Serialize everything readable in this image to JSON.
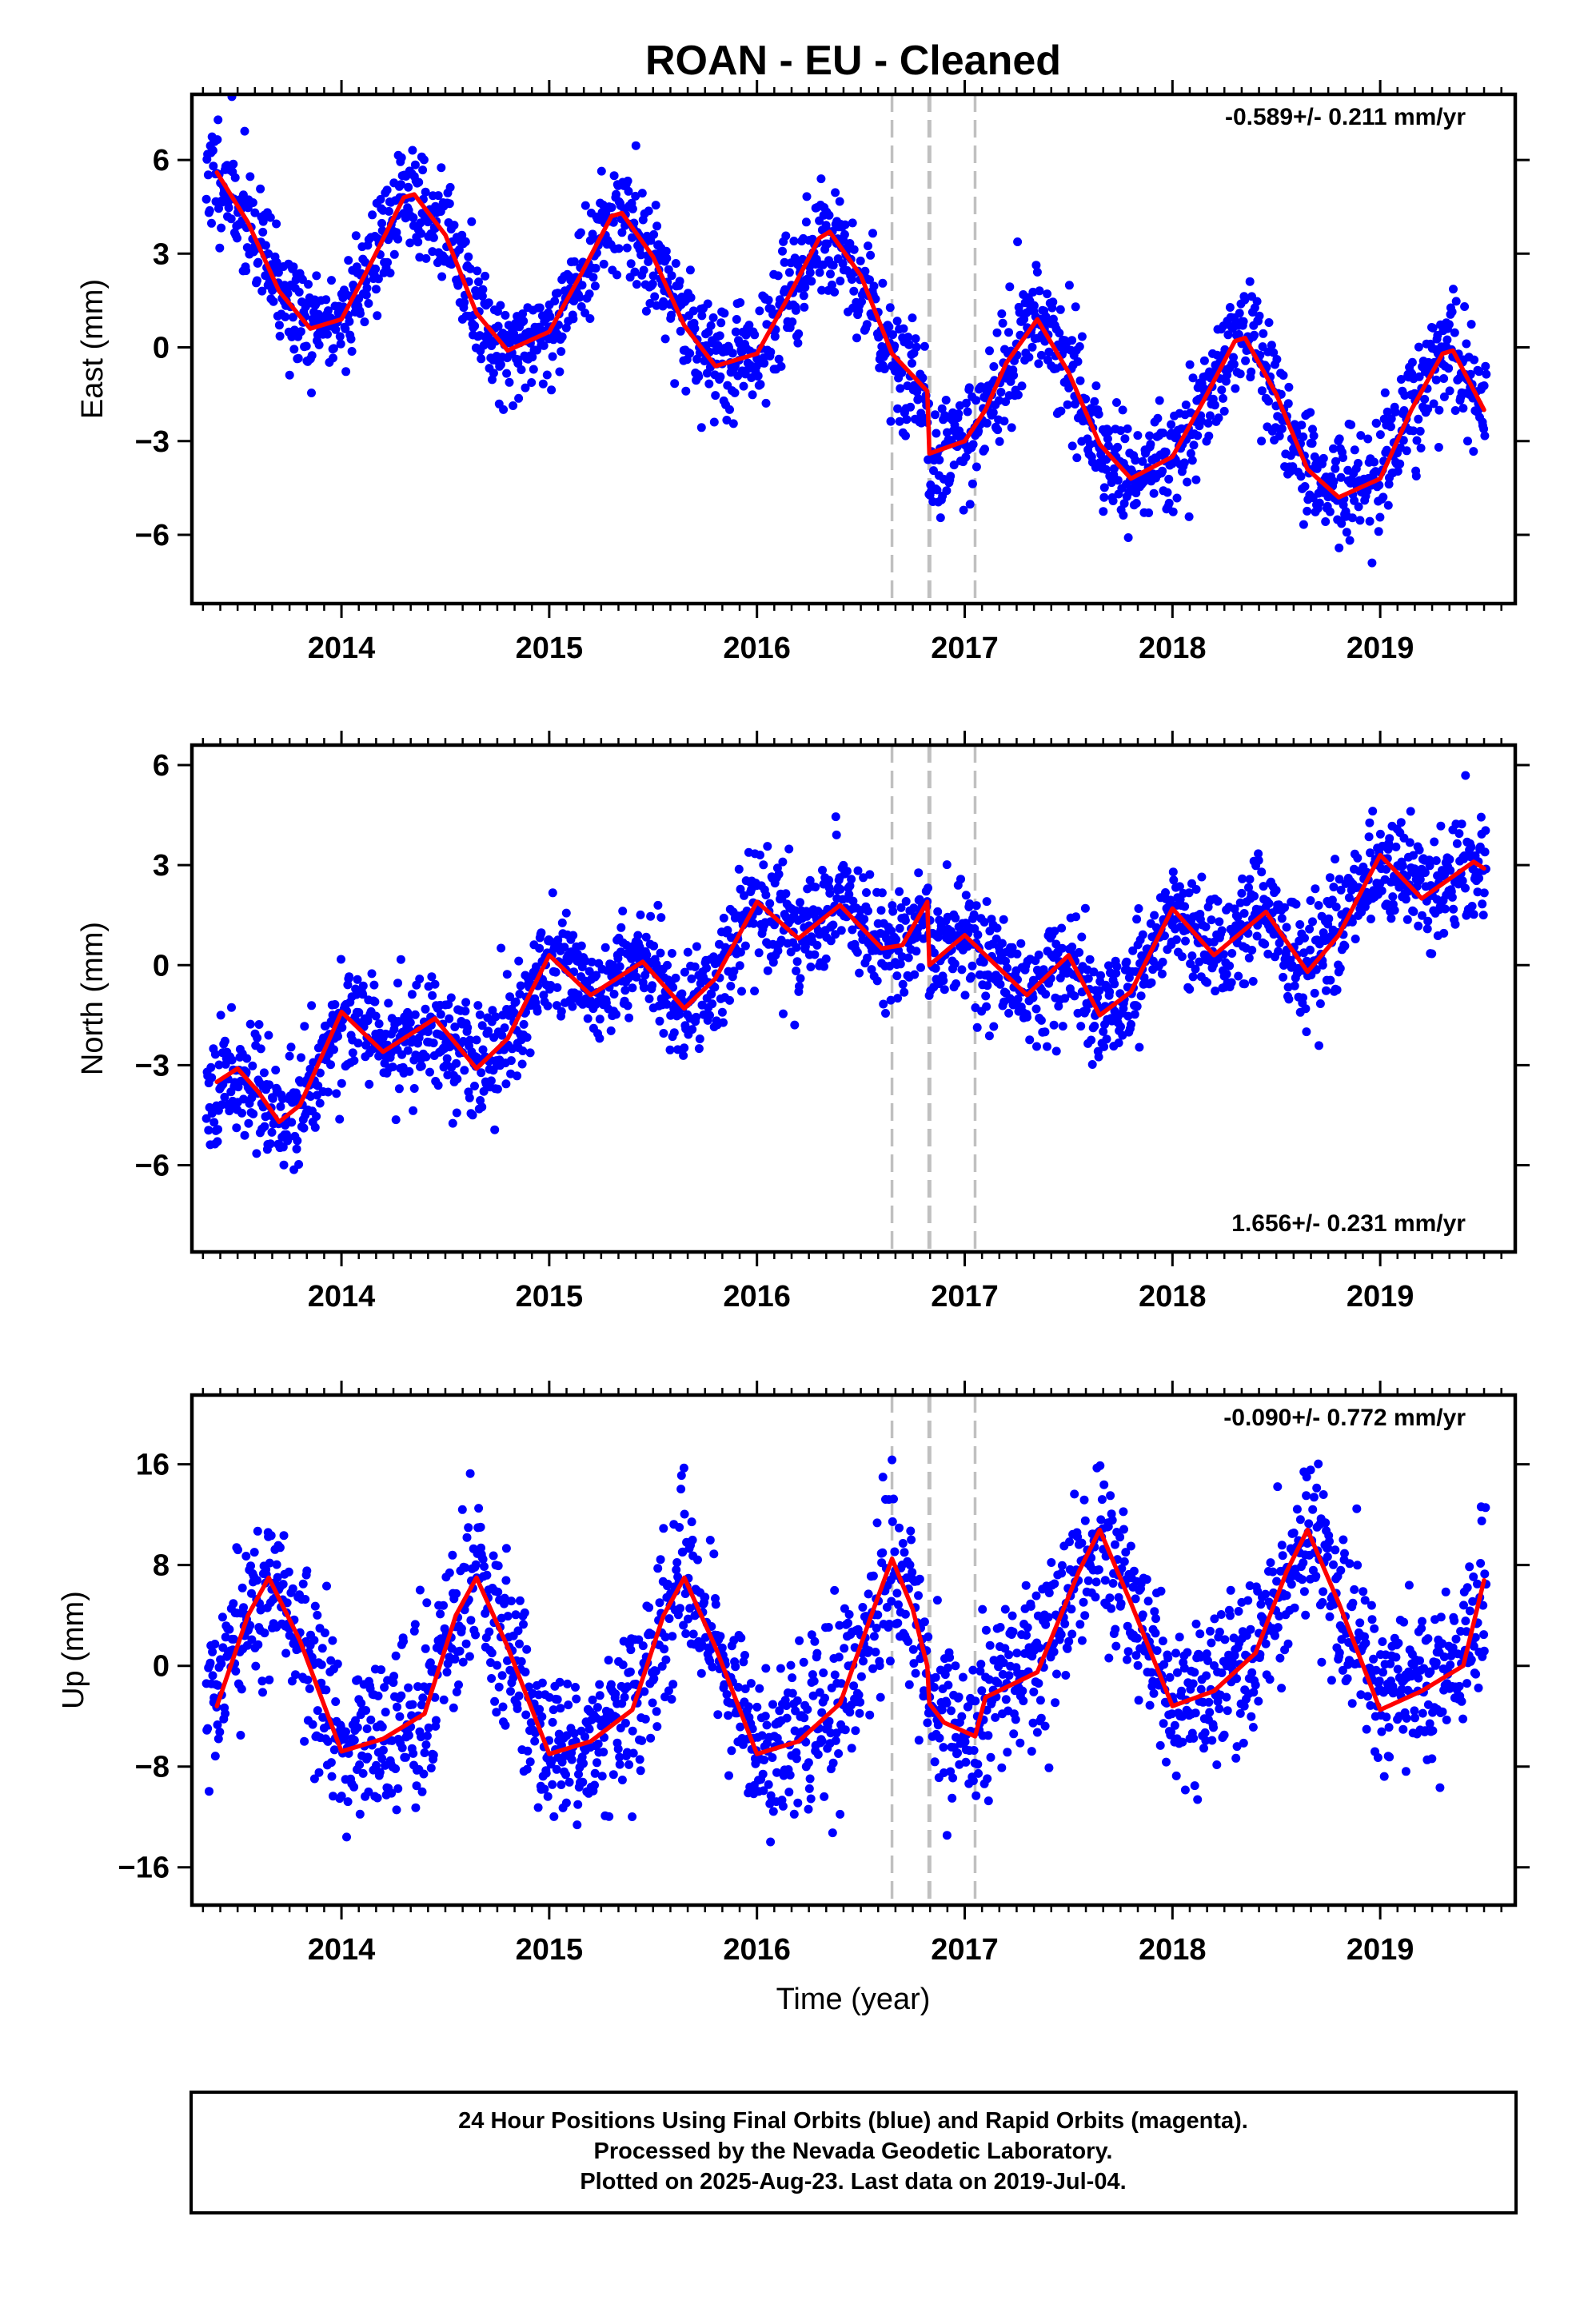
{
  "title": "ROAN  - EU - Cleaned",
  "xlabel": "Time (year)",
  "x_ticks": [
    "2014",
    "2015",
    "2016",
    "2017",
    "2018",
    "2019"
  ],
  "caption": {
    "line1": "24 Hour Positions Using Final Orbits (blue) and Rapid Orbits (magenta).",
    "line2": "Processed by the Nevada Geodetic Laboratory.",
    "line3": "Plotted on 2025-Aug-23. Last data on 2019-Jul-04."
  },
  "colors": {
    "points": "#0000ff",
    "model": "#ff0000",
    "events": "#c0c0c0",
    "frame": "#000000"
  },
  "chart_data": [
    {
      "type": "scatter",
      "name": "east",
      "ylabel": "East (mm)",
      "rate_label": "-0.589+/- 0.211 mm/yr",
      "rate_position": "top-right",
      "xlim": [
        2013.28,
        2019.65
      ],
      "ylim": [
        -8.2,
        8.1
      ],
      "yticks": [
        -6,
        -3,
        0,
        3,
        6
      ],
      "ytick_labels": [
        "−6",
        "−3",
        "0",
        "3",
        "6"
      ],
      "event_lines": [
        2016.65,
        2016.83,
        2017.05
      ],
      "model": {
        "x": [
          2013.4,
          2013.55,
          2013.7,
          2013.85,
          2014.0,
          2014.15,
          2014.3,
          2014.35,
          2014.5,
          2014.65,
          2014.8,
          2015.0,
          2015.15,
          2015.3,
          2015.35,
          2015.5,
          2015.65,
          2015.8,
          2016.0,
          2016.15,
          2016.3,
          2016.35,
          2016.5,
          2016.65,
          2016.82,
          2016.83,
          2017.0,
          2017.1,
          2017.2,
          2017.35,
          2017.5,
          2017.65,
          2017.8,
          2018.0,
          2018.15,
          2018.3,
          2018.35,
          2018.5,
          2018.65,
          2018.8,
          2019.0,
          2019.15,
          2019.3,
          2019.35,
          2019.5
        ],
        "y": [
          5.6,
          4.0,
          1.8,
          0.6,
          0.9,
          2.8,
          4.8,
          4.9,
          3.6,
          1.1,
          -0.1,
          0.5,
          2.3,
          4.2,
          4.3,
          2.9,
          0.7,
          -0.6,
          -0.2,
          1.6,
          3.5,
          3.7,
          2.3,
          -0.2,
          -1.4,
          -3.4,
          -3.0,
          -2.0,
          -0.5,
          0.9,
          -0.8,
          -3.1,
          -4.2,
          -3.5,
          -1.7,
          0.2,
          0.3,
          -1.5,
          -3.9,
          -4.8,
          -4.2,
          -2.0,
          -0.2,
          -0.1,
          -2.0
        ]
      },
      "points_generator": {
        "count": 2000,
        "x_range": [
          2013.35,
          2019.51
        ],
        "follows": "model",
        "seed": 11,
        "scatter_sd": 0.9
      }
    },
    {
      "type": "scatter",
      "name": "north",
      "ylabel": "North (mm)",
      "rate_label": "1.656+/- 0.231 mm/yr",
      "rate_position": "bottom-right",
      "xlim": [
        2013.28,
        2019.65
      ],
      "ylim": [
        -8.6,
        6.6
      ],
      "yticks": [
        -6,
        -3,
        0,
        3,
        6
      ],
      "ytick_labels": [
        "−6",
        "−3",
        "0",
        "3",
        "6"
      ],
      "event_lines": [
        2016.65,
        2016.83,
        2017.05
      ],
      "model": {
        "x": [
          2013.4,
          2013.5,
          2013.6,
          2013.7,
          2013.8,
          2014.0,
          2014.2,
          2014.45,
          2014.65,
          2014.8,
          2015.0,
          2015.2,
          2015.45,
          2015.65,
          2015.8,
          2016.0,
          2016.2,
          2016.4,
          2016.6,
          2016.7,
          2016.82,
          2016.83,
          2017.0,
          2017.1,
          2017.3,
          2017.5,
          2017.65,
          2017.8,
          2018.0,
          2018.2,
          2018.45,
          2018.65,
          2018.8,
          2019.0,
          2019.2,
          2019.45,
          2019.5
        ],
        "y": [
          -3.5,
          -3.1,
          -3.8,
          -4.7,
          -4.2,
          -1.4,
          -2.6,
          -1.6,
          -3.1,
          -2.2,
          0.3,
          -0.9,
          0.1,
          -1.3,
          -0.4,
          1.9,
          0.8,
          1.8,
          0.5,
          0.6,
          1.9,
          0.0,
          0.9,
          0.3,
          -0.9,
          0.3,
          -1.5,
          -0.8,
          1.7,
          0.3,
          1.6,
          -0.2,
          0.9,
          3.3,
          2.0,
          3.1,
          2.9
        ]
      },
      "points_generator": {
        "count": 2000,
        "x_range": [
          2013.35,
          2019.51
        ],
        "follows": "model",
        "seed": 23,
        "scatter_sd": 0.85
      }
    },
    {
      "type": "scatter",
      "name": "up",
      "ylabel": "Up (mm)",
      "rate_label": "-0.090+/- 0.772 mm/yr",
      "rate_position": "top-right",
      "xlim": [
        2013.28,
        2019.65
      ],
      "ylim": [
        -19,
        21.5
      ],
      "yticks": [
        -16,
        -8,
        0,
        8,
        16
      ],
      "ytick_labels": [
        "−16",
        "−8",
        "0",
        "8",
        "16"
      ],
      "event_lines": [
        2016.65,
        2016.83,
        2017.05
      ],
      "model": {
        "x": [
          2013.4,
          2013.55,
          2013.65,
          2013.8,
          2014.0,
          2014.2,
          2014.4,
          2014.55,
          2014.65,
          2014.8,
          2015.0,
          2015.2,
          2015.4,
          2015.55,
          2015.65,
          2015.8,
          2016.0,
          2016.2,
          2016.4,
          2016.55,
          2016.65,
          2016.75,
          2016.82,
          2016.83,
          2016.9,
          2017.05,
          2017.1,
          2017.35,
          2017.55,
          2017.65,
          2017.8,
          2018.0,
          2018.2,
          2018.4,
          2018.55,
          2018.65,
          2018.8,
          2019.0,
          2019.2,
          2019.4,
          2019.5
        ],
        "y": [
          -3.2,
          4.0,
          7.0,
          2.0,
          -6.8,
          -5.8,
          -3.8,
          4.0,
          7.0,
          1.5,
          -7.0,
          -6.0,
          -3.5,
          4.0,
          7.0,
          1.5,
          -7.0,
          -6.0,
          -3.0,
          4.0,
          8.5,
          4.5,
          0.0,
          -3.0,
          -4.5,
          -5.6,
          -2.5,
          -0.5,
          7.5,
          10.8,
          5.0,
          -3.2,
          -2.0,
          1.0,
          7.5,
          10.8,
          5.0,
          -3.5,
          -2.0,
          0.0,
          6.8
        ]
      },
      "points_generator": {
        "count": 2000,
        "x_range": [
          2013.35,
          2019.51
        ],
        "follows": "model",
        "seed": 37,
        "scatter_sd": 3.3
      }
    }
  ]
}
